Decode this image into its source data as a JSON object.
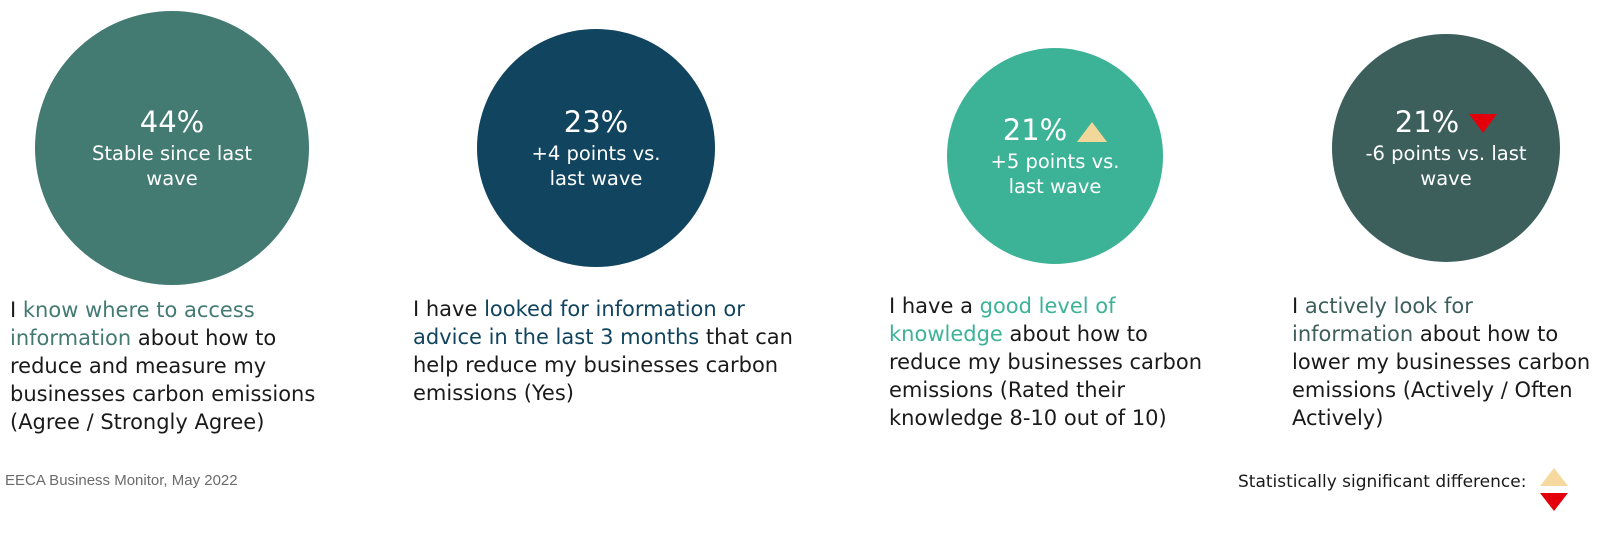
{
  "chart_data": {
    "type": "bubble-stats",
    "metrics": [
      {
        "value_label": "44%",
        "value": 44,
        "change_label": "Stable since last wave",
        "change": 0,
        "significance": "none",
        "color": "#437a72",
        "statement_pre": "I ",
        "statement_highlight": "know where to access information",
        "statement_post": " about how to reduce and measure my businesses carbon emissions (Agree / Strongly Agree)"
      },
      {
        "value_label": "23%",
        "value": 23,
        "change_label": "+4 points vs. last wave",
        "change": 4,
        "significance": "none",
        "color": "#11445f",
        "statement_pre": "I have ",
        "statement_highlight": "looked for information or advice in the last 3 months",
        "statement_post": " that can help reduce my businesses carbon emissions (Yes)"
      },
      {
        "value_label": "21%",
        "value": 21,
        "change_label": "+5 points vs. last wave",
        "change": 5,
        "significance": "up",
        "color": "#3cb397",
        "statement_pre": "I have a ",
        "statement_highlight": "good level of knowledge",
        "statement_post": " about how to reduce my businesses carbon emissions (Rated their knowledge 8-10 out of 10)"
      },
      {
        "value_label": "21%",
        "value": 21,
        "change_label": "-6 points vs. last wave",
        "change": -6,
        "significance": "down",
        "color": "#3c5f5b",
        "statement_pre": "I ",
        "statement_highlight": "actively look for information",
        "statement_post": " about how to lower my businesses carbon emissions (Actively / Often Actively)"
      }
    ]
  },
  "footer": {
    "source": "EECA Business Monitor, May 2022"
  },
  "legend": {
    "label": "Statistically significant difference:",
    "up_color": "#f5d99e",
    "down_color": "#e3000b"
  }
}
